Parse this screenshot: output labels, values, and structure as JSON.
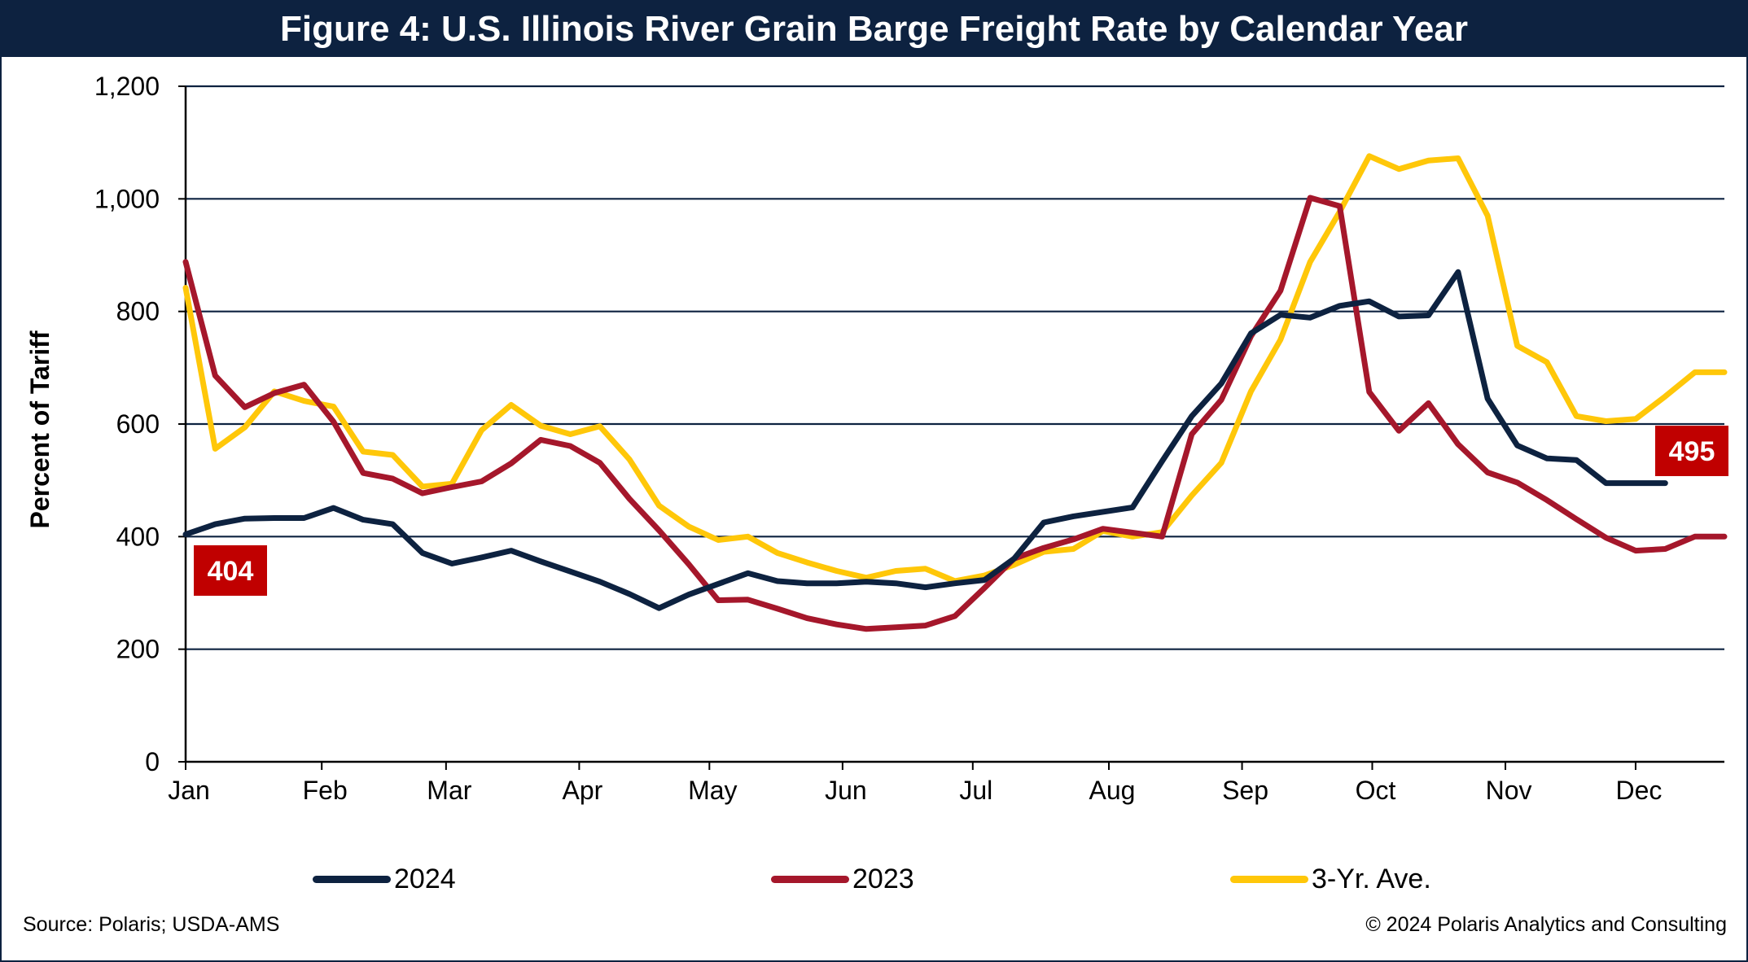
{
  "title": "Figure 4: U.S. Illinois River Grain Barge Freight Rate by Calendar Year",
  "source": "Source: Polaris; USDA-AMS",
  "copyright": "© 2024 Polaris Analytics and Consulting",
  "colors": {
    "header_bg": "#0d2240",
    "series_2024": "#0d2240",
    "series_2023": "#a5172b",
    "series_avg": "#ffc709",
    "callout_bg": "#c00000"
  },
  "chart_data": {
    "type": "line",
    "ylabel": "Percent of Tariff",
    "xlabel": "",
    "ylim": [
      0,
      1200
    ],
    "yticks": [
      0,
      200,
      400,
      600,
      800,
      1000,
      1200
    ],
    "ytick_labels": [
      "0",
      "200",
      "400",
      "600",
      "800",
      "1,000",
      "1,200"
    ],
    "x_unit": "week of year",
    "xlim": [
      1,
      53
    ],
    "xtick_labels": [
      "Jan",
      "Feb",
      "Mar",
      "Apr",
      "May",
      "Jun",
      "Jul",
      "Aug",
      "Sep",
      "Oct",
      "Nov",
      "Dec"
    ],
    "xtick_weeks": [
      1,
      5.6,
      9.8,
      14.3,
      18.7,
      23.2,
      27.6,
      32.2,
      36.7,
      41.1,
      45.6,
      50
    ],
    "grid": true,
    "legend_position": "bottom",
    "series": [
      {
        "name": "2024",
        "x": [
          1,
          2,
          3,
          4,
          5,
          6,
          7,
          8,
          9,
          10,
          11,
          12,
          13,
          14,
          15,
          16,
          17,
          18,
          19,
          20,
          21,
          22,
          23,
          24,
          25,
          26,
          27,
          28,
          29,
          30,
          31,
          32,
          33,
          34,
          35,
          36,
          37,
          38,
          39,
          40,
          41,
          42,
          43,
          44,
          45,
          46,
          47,
          48,
          49,
          50,
          51
        ],
        "values": [
          404,
          422,
          432,
          433,
          433,
          451,
          430,
          422,
          371,
          352,
          363,
          375,
          356,
          338,
          320,
          298,
          273,
          297,
          316,
          335,
          321,
          317,
          317,
          320,
          317,
          310,
          317,
          323,
          361,
          425,
          436,
          444,
          452,
          534,
          614,
          672,
          761,
          794,
          789,
          810,
          818,
          791,
          793,
          870,
          645,
          562,
          539,
          536,
          495,
          495,
          495
        ]
      },
      {
        "name": "2023",
        "x": [
          1,
          2,
          3,
          4,
          5,
          6,
          7,
          8,
          9,
          10,
          11,
          12,
          13,
          14,
          15,
          16,
          17,
          18,
          19,
          20,
          21,
          22,
          23,
          24,
          25,
          26,
          27,
          28,
          29,
          30,
          31,
          32,
          33,
          34,
          35,
          36,
          37,
          38,
          39,
          40,
          41,
          42,
          43,
          44,
          45,
          46,
          47,
          48,
          49,
          50,
          51,
          52,
          53
        ],
        "values": [
          888,
          686,
          630,
          655,
          670,
          604,
          513,
          503,
          477,
          488,
          498,
          530,
          572,
          561,
          531,
          467,
          411,
          351,
          287,
          288,
          272,
          255,
          244,
          236,
          239,
          242,
          259,
          309,
          361,
          380,
          395,
          414,
          407,
          400,
          582,
          643,
          756,
          837,
          1002,
          987,
          657,
          588,
          637,
          564,
          514,
          496,
          465,
          431,
          398,
          375,
          378,
          400,
          400
        ]
      },
      {
        "name": "3-Yr. Ave.",
        "x": [
          1,
          2,
          3,
          4,
          5,
          6,
          7,
          8,
          9,
          10,
          11,
          12,
          13,
          14,
          15,
          16,
          17,
          18,
          19,
          20,
          21,
          22,
          23,
          24,
          25,
          26,
          27,
          28,
          29,
          30,
          31,
          32,
          33,
          34,
          35,
          36,
          37,
          38,
          39,
          40,
          41,
          42,
          43,
          44,
          45,
          46,
          47,
          48,
          49,
          50,
          51,
          52,
          53
        ],
        "values": [
          842,
          556,
          594,
          658,
          641,
          631,
          551,
          545,
          489,
          494,
          589,
          634,
          597,
          582,
          596,
          537,
          455,
          418,
          394,
          400,
          371,
          354,
          339,
          327,
          339,
          343,
          321,
          331,
          350,
          373,
          378,
          410,
          400,
          408,
          473,
          531,
          658,
          750,
          888,
          977,
          1076,
          1053,
          1068,
          1072,
          970,
          739,
          710,
          614,
          605,
          609,
          649,
          692,
          692
        ]
      }
    ],
    "callouts": [
      {
        "label": "404",
        "series": "2024",
        "position": "start"
      },
      {
        "label": "495",
        "series": "2024",
        "position": "end"
      }
    ]
  }
}
